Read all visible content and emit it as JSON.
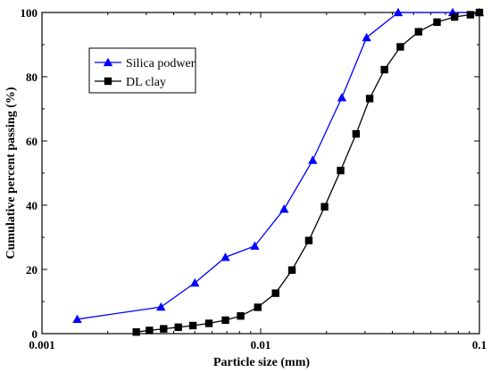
{
  "chart_data": {
    "type": "line",
    "xlabel": "Particle size (mm)",
    "ylabel": "Cumulative percent passing (%)",
    "xscale": "log",
    "xlim": [
      0.001,
      0.1
    ],
    "ylim": [
      0,
      100
    ],
    "x_ticks": [
      "0.001",
      "0.01",
      "0.1"
    ],
    "y_ticks": [
      "0",
      "20",
      "40",
      "60",
      "80",
      "100"
    ],
    "legend_position": "upper-left",
    "series": [
      {
        "name": "Silica podwer",
        "color": "#0000ff",
        "marker": "triangle",
        "x": [
          0.00145,
          0.0035,
          0.005,
          0.0069,
          0.0094,
          0.0128,
          0.0173,
          0.0235,
          0.0305,
          0.0425,
          0.0755,
          0.1
        ],
        "y": [
          4.5,
          8.3,
          15.8,
          23.8,
          27.3,
          38.8,
          54,
          73.5,
          92.2,
          100,
          100,
          100
        ]
      },
      {
        "name": "DL clay",
        "color": "#000000",
        "marker": "square",
        "x": [
          0.0027,
          0.0031,
          0.0036,
          0.0042,
          0.0049,
          0.0058,
          0.0069,
          0.0081,
          0.0097,
          0.0117,
          0.0139,
          0.0166,
          0.0196,
          0.0232,
          0.0273,
          0.0315,
          0.0368,
          0.0435,
          0.0527,
          0.064,
          0.077,
          0.091,
          0.1
        ],
        "y": [
          0.5,
          1,
          1.5,
          2,
          2.5,
          3.2,
          4.2,
          5.5,
          8.2,
          12.6,
          19.8,
          29,
          39.5,
          50.8,
          62.2,
          73.2,
          82.2,
          89.3,
          94,
          97,
          98.6,
          99.3,
          100
        ]
      }
    ]
  }
}
